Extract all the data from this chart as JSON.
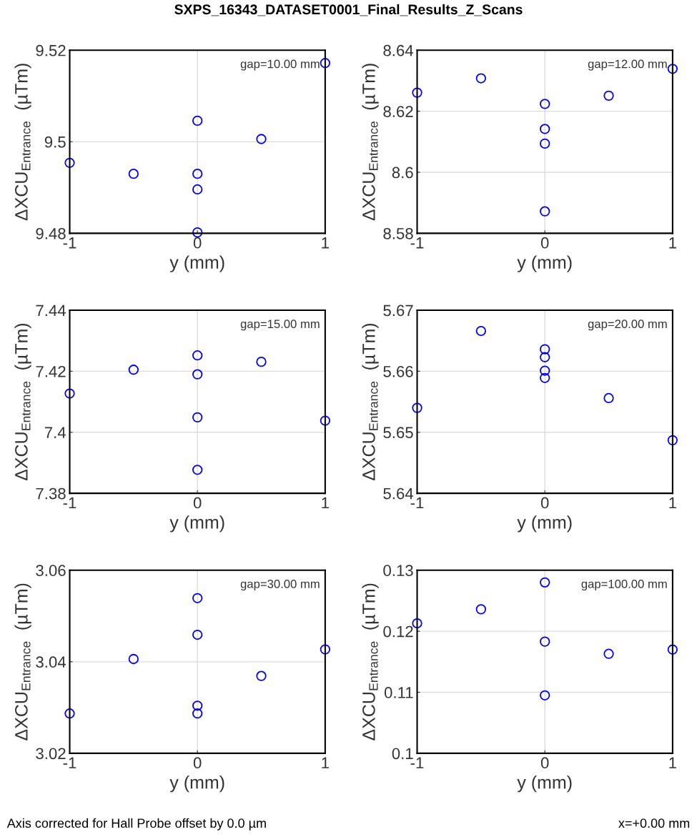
{
  "chart_data": [
    {
      "type": "scatter",
      "title": "SXPS_16343_DATASET0001_Final_Results_Z_Scans",
      "xlabel": "y (mm)",
      "ylabel": "ΔXCU$_{Entrance}$  (µTm)",
      "annotations": [
        "gap=10.00 mm"
      ],
      "marker": "circle",
      "grid": true,
      "xlim": [
        -1,
        1
      ],
      "xticks": [
        -1,
        0,
        1
      ],
      "ylim": [
        9.48,
        9.52
      ],
      "yticks": [
        9.48,
        9.5,
        9.52
      ],
      "series": [
        {
          "color": "#0000ff",
          "x": [
            -1,
            -0.5,
            0,
            0,
            0,
            0,
            0.5,
            1
          ],
          "values": [
            9.4954,
            9.493,
            9.5046,
            9.493,
            9.4896,
            9.4802,
            9.5006,
            9.5172
          ]
        }
      ]
    },
    {
      "type": "scatter",
      "xlabel": "y (mm)",
      "ylabel": "ΔXCU$_{Entrance}$  (µTm)",
      "annotations": [
        "gap=12.00 mm"
      ],
      "marker": "circle",
      "grid": true,
      "xlim": [
        -1,
        1
      ],
      "xticks": [
        -1,
        0,
        1
      ],
      "ylim": [
        8.58,
        8.64
      ],
      "yticks": [
        8.58,
        8.6,
        8.62,
        8.64
      ],
      "series": [
        {
          "color": "#0000ff",
          "x": [
            -1,
            -0.5,
            0,
            0,
            0,
            0,
            0.5,
            1
          ],
          "values": [
            8.6261,
            8.6308,
            8.6224,
            8.6142,
            8.6094,
            8.5872,
            8.6251,
            8.6339
          ]
        }
      ]
    },
    {
      "type": "scatter",
      "xlabel": "y (mm)",
      "ylabel": "ΔXCU$_{Entrance}$  (µTm)",
      "annotations": [
        "gap=15.00 mm"
      ],
      "marker": "circle",
      "grid": true,
      "xlim": [
        -1,
        1
      ],
      "xticks": [
        -1,
        0,
        1
      ],
      "ylim": [
        7.38,
        7.44
      ],
      "yticks": [
        7.38,
        7.4,
        7.42,
        7.44
      ],
      "series": [
        {
          "color": "#0000ff",
          "x": [
            -1,
            -0.5,
            0,
            0,
            0,
            0,
            0.5,
            1
          ],
          "values": [
            7.4127,
            7.4205,
            7.4252,
            7.419,
            7.4049,
            7.3877,
            7.4231,
            7.4038
          ]
        }
      ]
    },
    {
      "type": "scatter",
      "xlabel": "y (mm)",
      "ylabel": "ΔXCU$_{Entrance}$  (µTm)",
      "annotations": [
        "gap=20.00 mm"
      ],
      "marker": "circle",
      "grid": true,
      "xlim": [
        -1,
        1
      ],
      "xticks": [
        -1,
        0,
        1
      ],
      "ylim": [
        5.64,
        5.67
      ],
      "yticks": [
        5.64,
        5.65,
        5.66,
        5.67
      ],
      "series": [
        {
          "color": "#0000ff",
          "x": [
            -1,
            -0.5,
            0,
            0,
            0,
            0,
            0.5,
            1
          ],
          "values": [
            5.654,
            5.6666,
            5.6636,
            5.6623,
            5.6601,
            5.6589,
            5.6556,
            5.6487
          ]
        }
      ]
    },
    {
      "type": "scatter",
      "xlabel": "y (mm)",
      "ylabel": "ΔXCU$_{Entrance}$  (µTm)",
      "annotations": [
        "gap=30.00 mm"
      ],
      "marker": "circle",
      "grid": true,
      "xlim": [
        -1,
        1
      ],
      "xticks": [
        -1,
        0,
        1
      ],
      "ylim": [
        3.02,
        3.06
      ],
      "yticks": [
        3.02,
        3.04,
        3.06
      ],
      "series": [
        {
          "color": "#0000ff",
          "x": [
            -1,
            -0.5,
            0,
            0,
            0,
            0,
            0.5,
            1
          ],
          "values": [
            3.0287,
            3.0406,
            3.0539,
            3.0459,
            3.0304,
            3.0287,
            3.0369,
            3.0427
          ]
        }
      ]
    },
    {
      "type": "scatter",
      "xlabel": "y (mm)",
      "ylabel": "ΔXCU$_{Entrance}$  (µTm)",
      "annotations": [
        "gap=100.00 mm",
        "Axis corrected for Hall Probe offset by 0.0 µm",
        "x=+0.00 mm"
      ],
      "marker": "circle",
      "grid": true,
      "xlim": [
        -1,
        1
      ],
      "xticks": [
        -1,
        0,
        1
      ],
      "ylim": [
        0.1,
        0.13
      ],
      "yticks": [
        0.1,
        0.11,
        0.12,
        0.13
      ],
      "series": [
        {
          "color": "#0000ff",
          "x": [
            -1,
            -0.5,
            0,
            0,
            0,
            0.5,
            1
          ],
          "values": [
            0.1213,
            0.1236,
            0.128,
            0.1183,
            0.1095,
            0.1163,
            0.117
          ]
        }
      ]
    }
  ]
}
